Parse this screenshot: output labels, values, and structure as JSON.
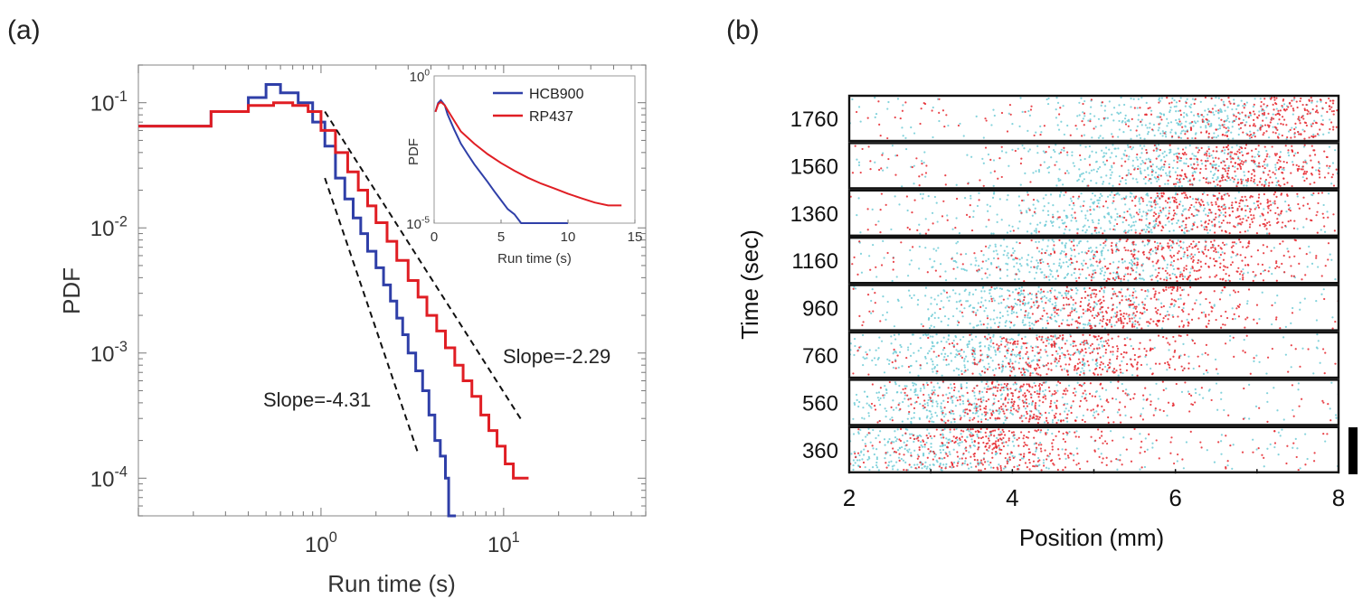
{
  "panel_labels": {
    "a": "(a)",
    "b": "(b)"
  },
  "chart_data": [
    {
      "panel": "(a)",
      "type": "line",
      "subtype": "loglog-step-histogram",
      "xscale": "log",
      "yscale": "log",
      "xlim": [
        0.1,
        60
      ],
      "ylim": [
        5e-05,
        0.2
      ],
      "xlabel": "Run time (s)",
      "ylabel": "PDF",
      "xticks": [
        {
          "value": 1,
          "base": "10",
          "exp": "0"
        },
        {
          "value": 10,
          "base": "10",
          "exp": "1"
        }
      ],
      "yticks": [
        {
          "value": 0.1,
          "base": "10",
          "exp": "-1"
        },
        {
          "value": 0.01,
          "base": "10",
          "exp": "-2"
        },
        {
          "value": 0.001,
          "base": "10",
          "exp": "-3"
        },
        {
          "value": 0.0001,
          "base": "10",
          "exp": "-4"
        }
      ],
      "series": [
        {
          "name": "HCB900",
          "color": "#2f3fa8",
          "x": [
            0.1,
            0.25,
            0.4,
            0.5,
            0.6,
            0.75,
            0.9,
            1.05,
            1.2,
            1.35,
            1.5,
            1.65,
            1.8,
            2.0,
            2.2,
            2.4,
            2.6,
            2.8,
            3.0,
            3.3,
            3.6,
            3.9,
            4.2,
            4.5,
            4.8,
            5.0
          ],
          "y": [
            0.065,
            0.085,
            0.11,
            0.14,
            0.12,
            0.1,
            0.07,
            0.045,
            0.025,
            0.017,
            0.012,
            0.009,
            0.0065,
            0.0048,
            0.0035,
            0.0026,
            0.0019,
            0.0014,
            0.001,
            0.00072,
            0.0005,
            0.00032,
            0.0002,
            0.00015,
            0.0001,
            5e-05
          ]
        },
        {
          "name": "RP437",
          "color": "#e01e24",
          "x": [
            0.1,
            0.25,
            0.4,
            0.55,
            0.7,
            0.85,
            1.0,
            1.2,
            1.4,
            1.6,
            1.8,
            2.0,
            2.3,
            2.6,
            3.0,
            3.4,
            3.8,
            4.3,
            4.8,
            5.4,
            6.0,
            6.7,
            7.5,
            8.3,
            9.2,
            10.2,
            11.3,
            12.5
          ],
          "y": [
            0.065,
            0.085,
            0.095,
            0.1,
            0.095,
            0.085,
            0.06,
            0.04,
            0.028,
            0.02,
            0.015,
            0.011,
            0.0078,
            0.0055,
            0.0038,
            0.0028,
            0.002,
            0.0015,
            0.0011,
            0.0008,
            0.0006,
            0.00045,
            0.00032,
            0.00024,
            0.00018,
            0.00013,
            0.0001,
            0.0001
          ]
        }
      ],
      "reference_lines": [
        {
          "label": "Slope=-2.29",
          "slope": -2.29,
          "x_range": [
            1.05,
            12.5
          ],
          "y_at_start": 0.085
        },
        {
          "label": "Slope=-4.31",
          "slope": -4.31,
          "x_range": [
            1.05,
            3.4
          ],
          "y_at_start": 0.025
        }
      ],
      "inset": {
        "type": "line",
        "yscale": "log",
        "xlim": [
          0,
          15
        ],
        "ylim": [
          1e-05,
          1
        ],
        "xlabel": "Run time (s)",
        "ylabel": "PDF",
        "xticks": [
          "0",
          "5",
          "10",
          "15"
        ],
        "yticks": [
          {
            "value": 1,
            "base": "10",
            "exp": "0"
          },
          {
            "value": 1e-05,
            "base": "10",
            "exp": "-5"
          }
        ],
        "legend": [
          "HCB900",
          "RP437"
        ],
        "legend_position": "top-right",
        "series": [
          {
            "name": "HCB900",
            "color": "#2f3fa8",
            "x": [
              0.1,
              0.3,
              0.5,
              0.8,
              1.0,
              1.5,
              2.0,
              2.5,
              3.0,
              3.5,
              4.0,
              4.5,
              5.0,
              5.5,
              6.0,
              6.5,
              7.0,
              8.0,
              9.0,
              10.0
            ],
            "y": [
              0.06,
              0.12,
              0.15,
              0.1,
              0.05,
              0.015,
              0.005,
              0.0022,
              0.001,
              0.0005,
              0.00025,
              0.00012,
              6e-05,
              3e-05,
              2e-05,
              1e-05,
              1e-05,
              1e-05,
              1e-05,
              1e-05
            ]
          },
          {
            "name": "RP437",
            "color": "#e01e24",
            "x": [
              0.1,
              0.3,
              0.5,
              0.8,
              1.0,
              1.5,
              2.0,
              3.0,
              4.0,
              5.0,
              6.0,
              7.0,
              8.0,
              9.0,
              10.0,
              11.0,
              12.0,
              13.0,
              14.0
            ],
            "y": [
              0.06,
              0.11,
              0.13,
              0.1,
              0.07,
              0.03,
              0.013,
              0.005,
              0.0022,
              0.0011,
              0.0006,
              0.00035,
              0.00022,
              0.00015,
              0.0001,
              7e-05,
              5e-05,
              4e-05,
              4e-05
            ]
          }
        ]
      }
    },
    {
      "panel": "(b)",
      "type": "scatter",
      "subtype": "stacked-strip-raster",
      "xlabel": "Position (mm)",
      "ylabel": "Time (sec)",
      "xlim": [
        2,
        8
      ],
      "xticks": [
        "2",
        "4",
        "6",
        "8"
      ],
      "grid": false,
      "strips": [
        {
          "time": "1760",
          "cyan_center_mm": 6.2,
          "red_center_mm": 7.4
        },
        {
          "time": "1560",
          "cyan_center_mm": 5.8,
          "red_center_mm": 6.9
        },
        {
          "time": "1360",
          "cyan_center_mm": 5.3,
          "red_center_mm": 6.4
        },
        {
          "time": "1160",
          "cyan_center_mm": 4.8,
          "red_center_mm": 6.0
        },
        {
          "time": "960",
          "cyan_center_mm": 4.2,
          "red_center_mm": 5.3
        },
        {
          "time": "760",
          "cyan_center_mm": 3.7,
          "red_center_mm": 4.8
        },
        {
          "time": "560",
          "cyan_center_mm": 3.2,
          "red_center_mm": 4.1
        },
        {
          "time": "360",
          "cyan_center_mm": 2.9,
          "red_center_mm": 3.8
        }
      ],
      "cyan_color": "#6fcbd6",
      "red_color": "#e5262d"
    }
  ]
}
